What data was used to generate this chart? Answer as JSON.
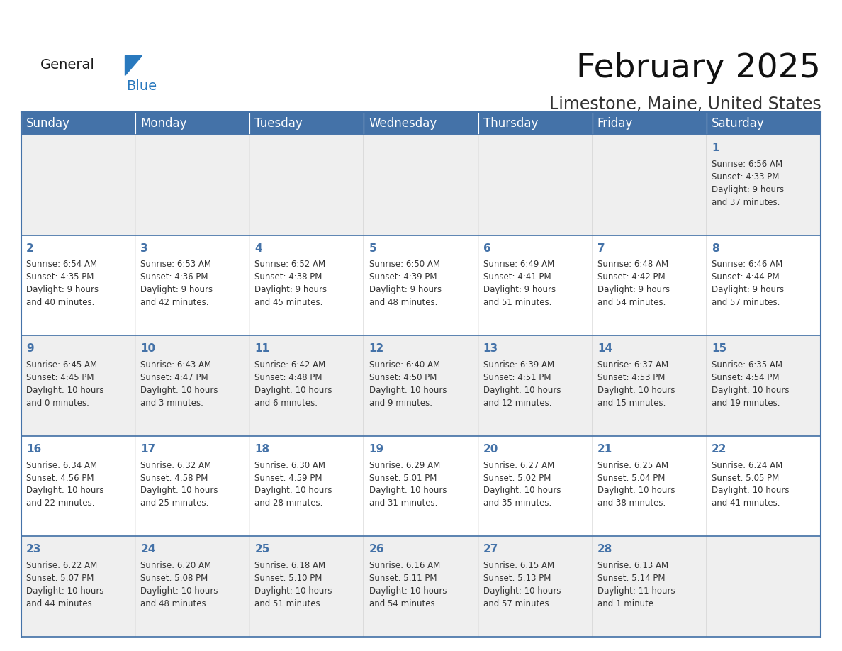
{
  "title": "February 2025",
  "subtitle": "Limestone, Maine, United States",
  "header_color": "#4472a8",
  "header_text_color": "#ffffff",
  "cell_bg_light": "#efefef",
  "cell_bg_white": "#ffffff",
  "border_color": "#4472a8",
  "text_color": "#333333",
  "day_number_color": "#4472a8",
  "day_names": [
    "Sunday",
    "Monday",
    "Tuesday",
    "Wednesday",
    "Thursday",
    "Friday",
    "Saturday"
  ],
  "title_fontsize": 34,
  "subtitle_fontsize": 17,
  "header_fontsize": 12,
  "cell_day_fontsize": 11,
  "cell_text_fontsize": 8.5,
  "logo_general_color": "#1a1a1a",
  "logo_blue_color": "#2979be",
  "days": [
    {
      "day": 1,
      "col": 6,
      "row": 0,
      "sunrise": "6:56 AM",
      "sunset": "4:33 PM",
      "daylight": "9 hours and 37 minutes."
    },
    {
      "day": 2,
      "col": 0,
      "row": 1,
      "sunrise": "6:54 AM",
      "sunset": "4:35 PM",
      "daylight": "9 hours and 40 minutes."
    },
    {
      "day": 3,
      "col": 1,
      "row": 1,
      "sunrise": "6:53 AM",
      "sunset": "4:36 PM",
      "daylight": "9 hours and 42 minutes."
    },
    {
      "day": 4,
      "col": 2,
      "row": 1,
      "sunrise": "6:52 AM",
      "sunset": "4:38 PM",
      "daylight": "9 hours and 45 minutes."
    },
    {
      "day": 5,
      "col": 3,
      "row": 1,
      "sunrise": "6:50 AM",
      "sunset": "4:39 PM",
      "daylight": "9 hours and 48 minutes."
    },
    {
      "day": 6,
      "col": 4,
      "row": 1,
      "sunrise": "6:49 AM",
      "sunset": "4:41 PM",
      "daylight": "9 hours and 51 minutes."
    },
    {
      "day": 7,
      "col": 5,
      "row": 1,
      "sunrise": "6:48 AM",
      "sunset": "4:42 PM",
      "daylight": "9 hours and 54 minutes."
    },
    {
      "day": 8,
      "col": 6,
      "row": 1,
      "sunrise": "6:46 AM",
      "sunset": "4:44 PM",
      "daylight": "9 hours and 57 minutes."
    },
    {
      "day": 9,
      "col": 0,
      "row": 2,
      "sunrise": "6:45 AM",
      "sunset": "4:45 PM",
      "daylight": "10 hours and 0 minutes."
    },
    {
      "day": 10,
      "col": 1,
      "row": 2,
      "sunrise": "6:43 AM",
      "sunset": "4:47 PM",
      "daylight": "10 hours and 3 minutes."
    },
    {
      "day": 11,
      "col": 2,
      "row": 2,
      "sunrise": "6:42 AM",
      "sunset": "4:48 PM",
      "daylight": "10 hours and 6 minutes."
    },
    {
      "day": 12,
      "col": 3,
      "row": 2,
      "sunrise": "6:40 AM",
      "sunset": "4:50 PM",
      "daylight": "10 hours and 9 minutes."
    },
    {
      "day": 13,
      "col": 4,
      "row": 2,
      "sunrise": "6:39 AM",
      "sunset": "4:51 PM",
      "daylight": "10 hours and 12 minutes."
    },
    {
      "day": 14,
      "col": 5,
      "row": 2,
      "sunrise": "6:37 AM",
      "sunset": "4:53 PM",
      "daylight": "10 hours and 15 minutes."
    },
    {
      "day": 15,
      "col": 6,
      "row": 2,
      "sunrise": "6:35 AM",
      "sunset": "4:54 PM",
      "daylight": "10 hours and 19 minutes."
    },
    {
      "day": 16,
      "col": 0,
      "row": 3,
      "sunrise": "6:34 AM",
      "sunset": "4:56 PM",
      "daylight": "10 hours and 22 minutes."
    },
    {
      "day": 17,
      "col": 1,
      "row": 3,
      "sunrise": "6:32 AM",
      "sunset": "4:58 PM",
      "daylight": "10 hours and 25 minutes."
    },
    {
      "day": 18,
      "col": 2,
      "row": 3,
      "sunrise": "6:30 AM",
      "sunset": "4:59 PM",
      "daylight": "10 hours and 28 minutes."
    },
    {
      "day": 19,
      "col": 3,
      "row": 3,
      "sunrise": "6:29 AM",
      "sunset": "5:01 PM",
      "daylight": "10 hours and 31 minutes."
    },
    {
      "day": 20,
      "col": 4,
      "row": 3,
      "sunrise": "6:27 AM",
      "sunset": "5:02 PM",
      "daylight": "10 hours and 35 minutes."
    },
    {
      "day": 21,
      "col": 5,
      "row": 3,
      "sunrise": "6:25 AM",
      "sunset": "5:04 PM",
      "daylight": "10 hours and 38 minutes."
    },
    {
      "day": 22,
      "col": 6,
      "row": 3,
      "sunrise": "6:24 AM",
      "sunset": "5:05 PM",
      "daylight": "10 hours and 41 minutes."
    },
    {
      "day": 23,
      "col": 0,
      "row": 4,
      "sunrise": "6:22 AM",
      "sunset": "5:07 PM",
      "daylight": "10 hours and 44 minutes."
    },
    {
      "day": 24,
      "col": 1,
      "row": 4,
      "sunrise": "6:20 AM",
      "sunset": "5:08 PM",
      "daylight": "10 hours and 48 minutes."
    },
    {
      "day": 25,
      "col": 2,
      "row": 4,
      "sunrise": "6:18 AM",
      "sunset": "5:10 PM",
      "daylight": "10 hours and 51 minutes."
    },
    {
      "day": 26,
      "col": 3,
      "row": 4,
      "sunrise": "6:16 AM",
      "sunset": "5:11 PM",
      "daylight": "10 hours and 54 minutes."
    },
    {
      "day": 27,
      "col": 4,
      "row": 4,
      "sunrise": "6:15 AM",
      "sunset": "5:13 PM",
      "daylight": "10 hours and 57 minutes."
    },
    {
      "day": 28,
      "col": 5,
      "row": 4,
      "sunrise": "6:13 AM",
      "sunset": "5:14 PM",
      "daylight": "11 hours and 1 minute."
    }
  ]
}
